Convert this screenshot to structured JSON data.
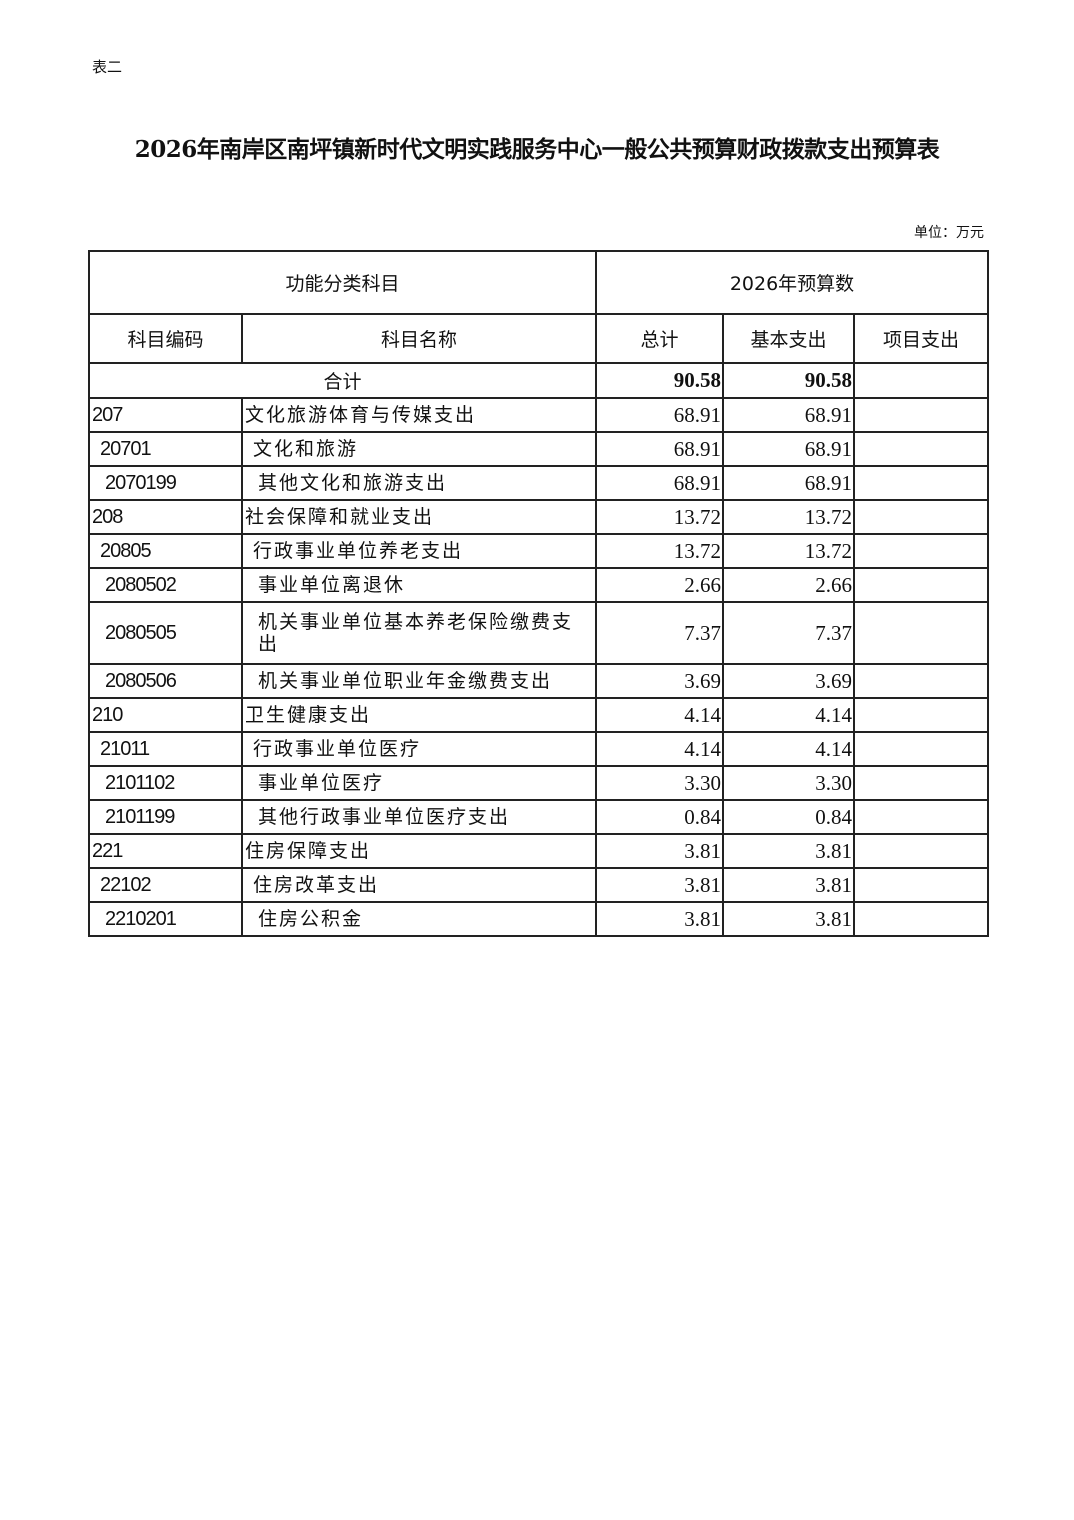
{
  "doc": {
    "label": "表二",
    "title": "2026年南岸区南坪镇新时代文明实践服务中心一般公共预算财政拨款支出预算表",
    "unit": "单位：万元"
  },
  "table": {
    "header1": [
      "功能分类科目",
      "2026年预算数"
    ],
    "header2": [
      "科目编码",
      "科目名称",
      "总计",
      "基本支出",
      "项目支出"
    ],
    "total": {
      "label": "合计",
      "total": "90.58",
      "basic": "90.58",
      "project": ""
    },
    "rows": [
      {
        "code": "207",
        "name": "文化旅游体育与传媒支出",
        "total": "68.91",
        "basic": "68.91",
        "project": "",
        "level": 1
      },
      {
        "code": "20701",
        "name": "文化和旅游",
        "total": "68.91",
        "basic": "68.91",
        "project": "",
        "level": 2
      },
      {
        "code": "2070199",
        "name": "其他文化和旅游支出",
        "total": "68.91",
        "basic": "68.91",
        "project": "",
        "level": 3
      },
      {
        "code": "208",
        "name": "社会保障和就业支出",
        "total": "13.72",
        "basic": "13.72",
        "project": "",
        "level": 1
      },
      {
        "code": "20805",
        "name": "行政事业单位养老支出",
        "total": "13.72",
        "basic": "13.72",
        "project": "",
        "level": 2
      },
      {
        "code": "2080502",
        "name": "事业单位离退休",
        "total": "2.66",
        "basic": "2.66",
        "project": "",
        "level": 3
      },
      {
        "code": "2080505",
        "name": "机关事业单位基本养老保险缴费支出",
        "total": "7.37",
        "basic": "7.37",
        "project": "",
        "level": 3
      },
      {
        "code": "2080506",
        "name": "机关事业单位职业年金缴费支出",
        "total": "3.69",
        "basic": "3.69",
        "project": "",
        "level": 3
      },
      {
        "code": "210",
        "name": "卫生健康支出",
        "total": "4.14",
        "basic": "4.14",
        "project": "",
        "level": 1
      },
      {
        "code": "21011",
        "name": "行政事业单位医疗",
        "total": "4.14",
        "basic": "4.14",
        "project": "",
        "level": 2
      },
      {
        "code": "2101102",
        "name": "事业单位医疗",
        "total": "3.30",
        "basic": "3.30",
        "project": "",
        "level": 3
      },
      {
        "code": "2101199",
        "name": "其他行政事业单位医疗支出",
        "total": "0.84",
        "basic": "0.84",
        "project": "",
        "level": 3
      },
      {
        "code": "221",
        "name": "住房保障支出",
        "total": "3.81",
        "basic": "3.81",
        "project": "",
        "level": 1
      },
      {
        "code": "22102",
        "name": "住房改革支出",
        "total": "3.81",
        "basic": "3.81",
        "project": "",
        "level": 2
      },
      {
        "code": "2210201",
        "name": "住房公积金",
        "total": "3.81",
        "basic": "3.81",
        "project": "",
        "level": 3
      }
    ]
  }
}
